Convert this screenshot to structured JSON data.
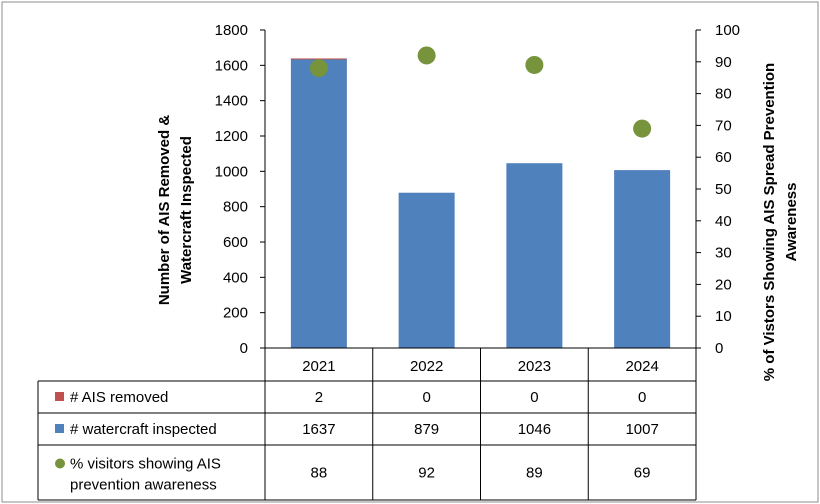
{
  "chart_data": {
    "type": "bar",
    "categories": [
      "2021",
      "2022",
      "2023",
      "2024"
    ],
    "series": [
      {
        "name": "# AIS removed",
        "kind": "bar-stacked",
        "axis": "left",
        "color": "#c0504d",
        "values": [
          2,
          0,
          0,
          0
        ]
      },
      {
        "name": "# watercraft inspected",
        "kind": "bar-stacked",
        "axis": "left",
        "color": "#4f81bd",
        "values": [
          1637,
          879,
          1046,
          1007
        ]
      },
      {
        "name": "% visitors showing AIS prevention awareness",
        "kind": "scatter",
        "axis": "right",
        "color": "#77933c",
        "values": [
          88,
          92,
          89,
          69
        ]
      }
    ],
    "ylabel_left_lines": [
      "Number of AIS Removed &",
      "Watercraft Inspected"
    ],
    "ylabel_right_lines": [
      "% of Vistors Showing AIS Spread Prevention",
      "Awareness"
    ],
    "ylim_left": [
      0,
      1800
    ],
    "ylim_right": [
      0,
      100
    ],
    "yticks_left": [
      "0",
      "200",
      "400",
      "600",
      "800",
      "1000",
      "1200",
      "1400",
      "1600",
      "1800"
    ],
    "yticks_right": [
      "0",
      "10",
      "20",
      "30",
      "40",
      "50",
      "60",
      "70",
      "80",
      "90",
      "100"
    ],
    "data_table": {
      "rows": [
        {
          "label_lines": [
            "# AIS removed"
          ],
          "cells": [
            "2",
            "0",
            "0",
            "0"
          ]
        },
        {
          "label_lines": [
            "# watercraft inspected"
          ],
          "cells": [
            "1637",
            "879",
            "1046",
            "1007"
          ]
        },
        {
          "label_lines": [
            "% visitors showing AIS",
            "prevention awareness"
          ],
          "cells": [
            "88",
            "92",
            "89",
            "69"
          ]
        }
      ]
    },
    "grid": false,
    "legend": "data-table"
  }
}
